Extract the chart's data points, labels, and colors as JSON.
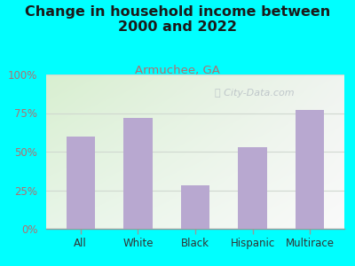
{
  "title": "Change in household income between\n2000 and 2022",
  "subtitle": "Armuchee, GA",
  "categories": [
    "All",
    "White",
    "Black",
    "Hispanic",
    "Multirace"
  ],
  "values": [
    60,
    72,
    28,
    53,
    77
  ],
  "bar_color": "#b8a8d0",
  "title_fontsize": 11.5,
  "subtitle_fontsize": 9.5,
  "subtitle_color": "#b07070",
  "tick_label_color": "#b07070",
  "xlabel_color": "#333333",
  "title_color": "#1a1a1a",
  "ylim": [
    0,
    100
  ],
  "yticks": [
    0,
    25,
    50,
    75,
    100
  ],
  "ytick_labels": [
    "0%",
    "25%",
    "50%",
    "75%",
    "100%"
  ],
  "background_outer": "#00ffff",
  "background_plot_topleft": "#d8efd0",
  "background_plot_bottomright": "#f8f8f8",
  "watermark": "City-Data.com",
  "watermark_color": "#b0b8c0",
  "grid_color": "#d0d8d0"
}
